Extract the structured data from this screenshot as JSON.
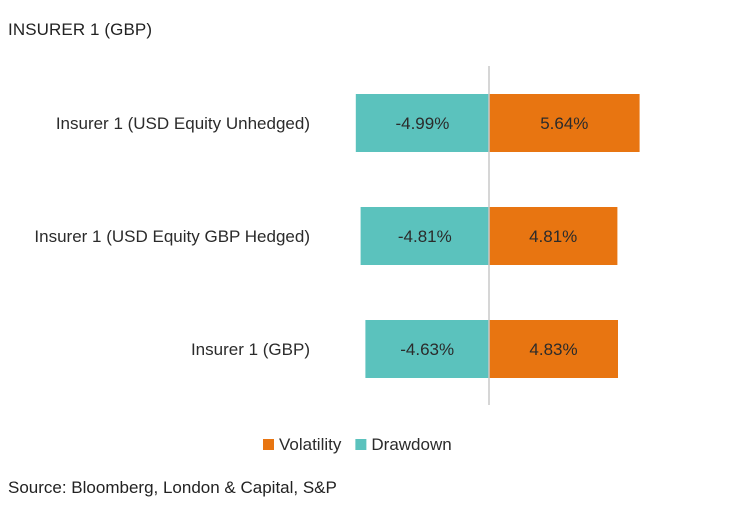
{
  "title": "INSURER 1 (GBP)",
  "source": "Source: Bloomberg, London & Capital, S&P",
  "chart_data": {
    "type": "bar",
    "orientation": "horizontal",
    "title": "INSURER 1 (GBP)",
    "categories": [
      "Insurer 1 (USD Equity Unhedged)",
      "Insurer 1 (USD Equity GBP Hedged)",
      "Insurer 1 (GBP)"
    ],
    "series": [
      {
        "name": "Drawdown",
        "color": "#5BC2BD",
        "values": [
          -4.99,
          -4.81,
          -4.63
        ],
        "labels": [
          "-4.99%",
          "-4.81%",
          "-4.63%"
        ]
      },
      {
        "name": "Volatility",
        "color": "#E87511",
        "values": [
          5.64,
          4.81,
          4.83
        ],
        "labels": [
          "5.64%",
          "4.81%",
          "4.83%"
        ]
      }
    ],
    "legend": {
      "position": "bottom",
      "order": [
        "Volatility",
        "Drawdown"
      ]
    },
    "xlim": [
      -5.0,
      5.64
    ],
    "grid": false,
    "zero_line": true
  }
}
